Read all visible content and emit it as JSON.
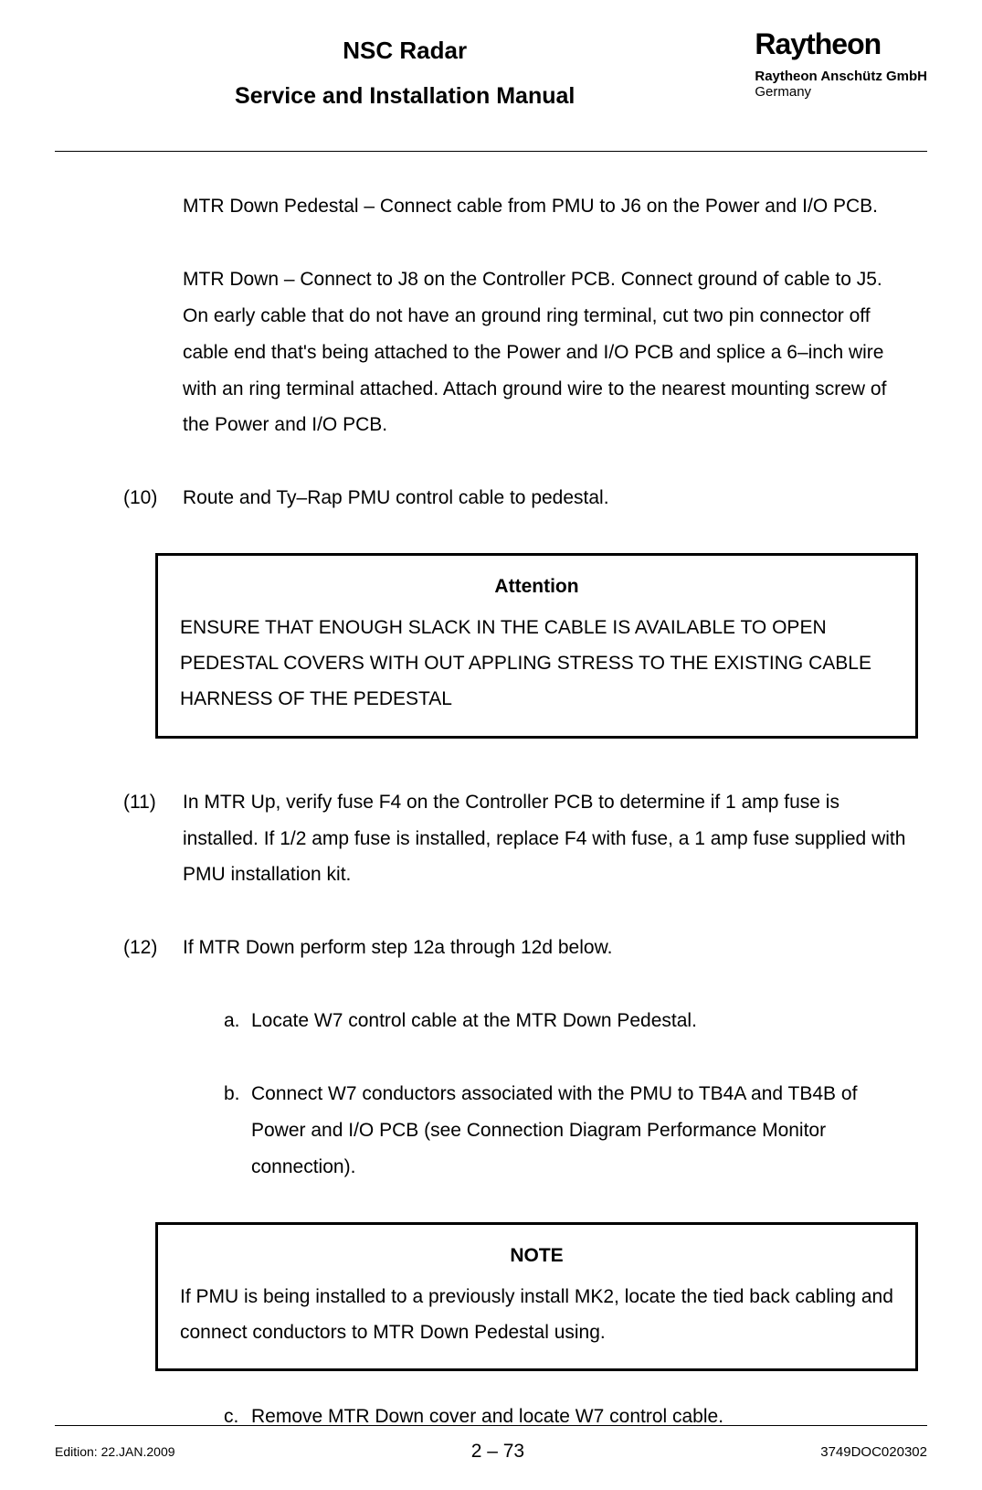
{
  "header": {
    "title": "NSC Radar",
    "subtitle": "Service and Installation Manual",
    "brand": "Raytheon",
    "company": "Raytheon Anschütz GmbH",
    "country": "Germany"
  },
  "content": {
    "para1": "MTR Down Pedestal – Connect cable from PMU to J6 on the Power and I/O PCB.",
    "para2": "MTR Down – Connect to J8 on the Controller PCB. Connect ground of cable to J5. On early cable that do not have an ground ring terminal, cut two pin connector off cable end that's being attached to the Power and I/O PCB and splice a 6–inch wire with an ring terminal attached. Attach ground wire to the nearest mounting screw of the Power and I/O PCB.",
    "item10_num": "(10)",
    "item10": "Route and Ty–Rap PMU control cable to pedestal.",
    "attention_title": "Attention",
    "attention_text": "ENSURE THAT ENOUGH SLACK IN THE CABLE IS AVAILABLE TO OPEN PEDESTAL COVERS WITH OUT APPLING STRESS TO THE EXISTING CABLE HARNESS OF THE PEDESTAL",
    "item11_num": "(11)",
    "item11": "In MTR Up, verify fuse F4 on the Controller PCB to determine if 1 amp fuse is installed. If 1/2 amp fuse is installed, replace F4 with fuse, a 1 amp fuse supplied with PMU installation kit.",
    "item12_num": "(12)",
    "item12": "If MTR Down perform step 12a through 12d below.",
    "item12a_num": "a.",
    "item12a": "Locate W7 control cable at the MTR Down Pedestal.",
    "item12b_num": "b.",
    "item12b": "Connect W7 conductors associated with the PMU to TB4A and TB4B of Power and I/O PCB (see Connection Diagram Performance Monitor connection).",
    "note_title": "NOTE",
    "note_text": "If PMU is being installed to a previously install MK2, locate the tied back cabling and connect conductors to MTR Down Pedestal using.",
    "item12c_num": "c.",
    "item12c": "Remove MTR Down cover and locate W7 control cable."
  },
  "footer": {
    "edition": "Edition: 22.JAN.2009",
    "page": "2 – 73",
    "docnum": "3749DOC020302"
  }
}
